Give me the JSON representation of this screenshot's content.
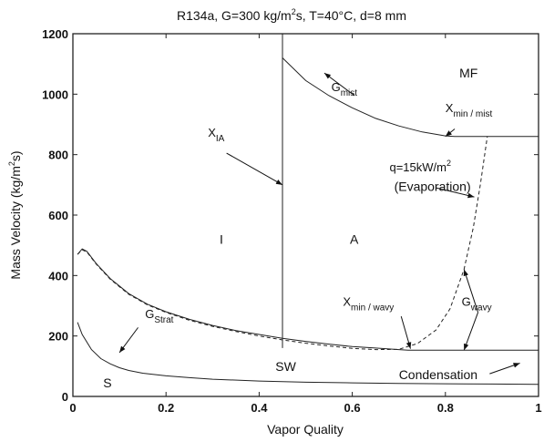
{
  "chart_data": {
    "type": "line",
    "title": "R134a, G=300 kg/m2s, T=40°C, d=8 mm",
    "title_parts": {
      "before": "R134a, G=300 kg/m",
      "sup": "2",
      "after": "s, T=40°C, d=8 mm"
    },
    "xlabel": "Vapor Quality",
    "ylabel": "Mass Velocity (kg/m2s)",
    "ylabel_parts": {
      "before": "Mass Velocity (kg/m",
      "sup": "2",
      "after": "s)"
    },
    "xlim": [
      0,
      1
    ],
    "ylim": [
      0,
      1200
    ],
    "x_ticks": [
      0,
      0.2,
      0.4,
      0.6,
      0.8,
      1
    ],
    "x_tick_labels": [
      "0",
      "0.2",
      "0.4",
      "0.6",
      "0.8",
      "1"
    ],
    "y_ticks": [
      0,
      200,
      400,
      600,
      800,
      1000,
      1200
    ],
    "y_tick_labels": [
      "0",
      "200",
      "400",
      "600",
      "800",
      "1000",
      "1200"
    ],
    "grid": false,
    "legend": "none",
    "series": [
      {
        "style": "solid",
        "x": [
          0.45,
          0.5,
          0.55,
          0.6,
          0.65,
          0.7,
          0.75,
          0.8,
          0.82,
          1.0
        ],
        "y": [
          1120,
          1045,
          995,
          955,
          920,
          895,
          875,
          862,
          860,
          860
        ]
      },
      {
        "style": "solid",
        "x": [
          0.45,
          0.45
        ],
        "y": [
          160,
          1200
        ]
      },
      {
        "style": "solid",
        "x": [
          0.01,
          0.02,
          0.03,
          0.05,
          0.08,
          0.12,
          0.16,
          0.2,
          0.25,
          0.3,
          0.35,
          0.4,
          0.45,
          0.5,
          0.55,
          0.6,
          0.65,
          0.7,
          0.72,
          1.0
        ],
        "y": [
          470,
          488,
          480,
          440,
          390,
          340,
          305,
          280,
          255,
          235,
          218,
          205,
          192,
          182,
          173,
          165,
          160,
          155,
          153,
          153
        ]
      },
      {
        "style": "dashed",
        "x": [
          0.01,
          0.02,
          0.03,
          0.05,
          0.08,
          0.12,
          0.16,
          0.2,
          0.25,
          0.3,
          0.35,
          0.4,
          0.45,
          0.5,
          0.55,
          0.6,
          0.65,
          0.7,
          0.74,
          0.78,
          0.81,
          0.84,
          0.86,
          0.875,
          0.89
        ],
        "y": [
          470,
          485,
          478,
          438,
          388,
          338,
          303,
          278,
          252,
          232,
          215,
          200,
          187,
          176,
          167,
          159,
          155,
          156,
          175,
          220,
          290,
          420,
          560,
          700,
          860
        ]
      },
      {
        "style": "solid",
        "x": [
          0.01,
          0.02,
          0.04,
          0.06,
          0.08,
          0.1,
          0.12,
          0.15,
          0.2,
          0.25,
          0.3,
          0.4,
          0.5,
          0.6,
          0.7,
          0.8,
          0.9,
          1.0
        ],
        "y": [
          245,
          205,
          155,
          125,
          108,
          95,
          86,
          77,
          68,
          62,
          57,
          51,
          47,
          45,
          43,
          42,
          41,
          40
        ]
      }
    ],
    "annotations": [
      {
        "text": "G",
        "sub": "mist",
        "x": 0.555,
        "y": 1010
      },
      {
        "text": "MF",
        "x": 0.83,
        "y": 1055
      },
      {
        "text": "X",
        "sub": "min / mist",
        "x": 0.8,
        "y": 940
      },
      {
        "text": "X",
        "sub": "IA",
        "x": 0.29,
        "y": 860
      },
      {
        "text": "q=15kW/m",
        "sup": "2",
        "x": 0.68,
        "y": 745
      },
      {
        "text": "(Evaporation)",
        "x": 0.69,
        "y": 680
      },
      {
        "text": "I",
        "x": 0.315,
        "y": 505
      },
      {
        "text": "A",
        "x": 0.595,
        "y": 505
      },
      {
        "text": "X",
        "sub": "min / wavy",
        "x": 0.58,
        "y": 300
      },
      {
        "text": "G",
        "sub": "wavy",
        "x": 0.835,
        "y": 300
      },
      {
        "text": "G",
        "sub": "Strat",
        "x": 0.155,
        "y": 260
      },
      {
        "text": "SW",
        "x": 0.435,
        "y": 85
      },
      {
        "text": "Condensation",
        "x": 0.7,
        "y": 58
      },
      {
        "text": "S",
        "x": 0.065,
        "y": 30
      }
    ],
    "arrows": [
      {
        "from": [
          0.605,
          995
        ],
        "to": [
          0.54,
          1070
        ]
      },
      {
        "from": [
          0.82,
          885
        ],
        "to": [
          0.8,
          860
        ]
      },
      {
        "from": [
          0.33,
          805
        ],
        "to": [
          0.45,
          700
        ]
      },
      {
        "from": [
          0.78,
          690
        ],
        "to": [
          0.862,
          660
        ]
      },
      {
        "from": [
          0.705,
          265
        ],
        "to": [
          0.725,
          158
        ]
      },
      {
        "from": [
          0.87,
          278
        ],
        "to": [
          0.84,
          420
        ]
      },
      {
        "from": [
          0.87,
          278
        ],
        "to": [
          0.84,
          153
        ]
      },
      {
        "from": [
          0.14,
          228
        ],
        "to": [
          0.1,
          145
        ]
      },
      {
        "from": [
          0.895,
          75
        ],
        "to": [
          0.96,
          110
        ]
      }
    ]
  }
}
